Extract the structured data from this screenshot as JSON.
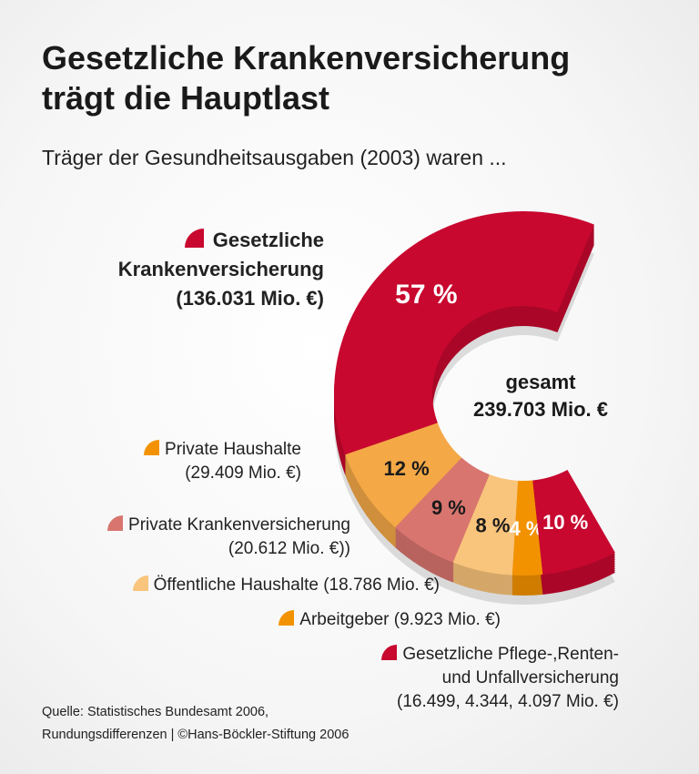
{
  "title_lines": [
    "Gesetzliche Krankenversicherung",
    "trägt die Hauptlast"
  ],
  "subtitle": "Träger der Gesundheitsausgaben (2003) waren ...",
  "chart_data": {
    "type": "pie",
    "variant": "3d-donut-arc",
    "center_label": [
      "gesamt",
      "239.703 Mio. €"
    ],
    "slices": [
      {
        "label_lines": [
          "Gesetzliche",
          "Krankenversicherung",
          "(136.031 Mio. €)"
        ],
        "value": 136031,
        "percent": 57,
        "percent_label": "57 %",
        "color": "#c8082f",
        "text_color": "#ffffff"
      },
      {
        "label_lines": [
          "Private Haushalte",
          "(29.409 Mio. €)"
        ],
        "value": 29409,
        "percent": 12,
        "percent_label": "12 %",
        "color": "#f4a846",
        "text_color": "#1a1a1a"
      },
      {
        "label_lines": [
          "Private Krankenversicherung",
          "(20.612 Mio. €))"
        ],
        "value": 20612,
        "percent": 9,
        "percent_label": "9 %",
        "color": "#d9756f",
        "text_color": "#1a1a1a"
      },
      {
        "label_lines": [
          "Öffentliche Haushalte (18.786 Mio. €)"
        ],
        "value": 18786,
        "percent": 8,
        "percent_label": "8 %",
        "color": "#f9c47c",
        "text_color": "#1a1a1a"
      },
      {
        "label_lines": [
          "Arbeitgeber (9.923 Mio. €)"
        ],
        "value": 9923,
        "percent": 4,
        "percent_label": "4 %",
        "color": "#f39200",
        "text_color": "#ffffff"
      },
      {
        "label_lines": [
          "Gesetzliche Pflege-,Renten-",
          "und Unfallversicherung",
          "(16.499, 4.344, 4.097 Mio. €)"
        ],
        "value": 24940,
        "percent": 10,
        "percent_label": "10 %",
        "color": "#c8082f",
        "text_color": "#ffffff"
      }
    ]
  },
  "source_lines": [
    "Quelle: Statistisches Bundesamt 2006,",
    "Rundungsdifferenzen | ©Hans-Böckler-Stiftung 2006"
  ]
}
